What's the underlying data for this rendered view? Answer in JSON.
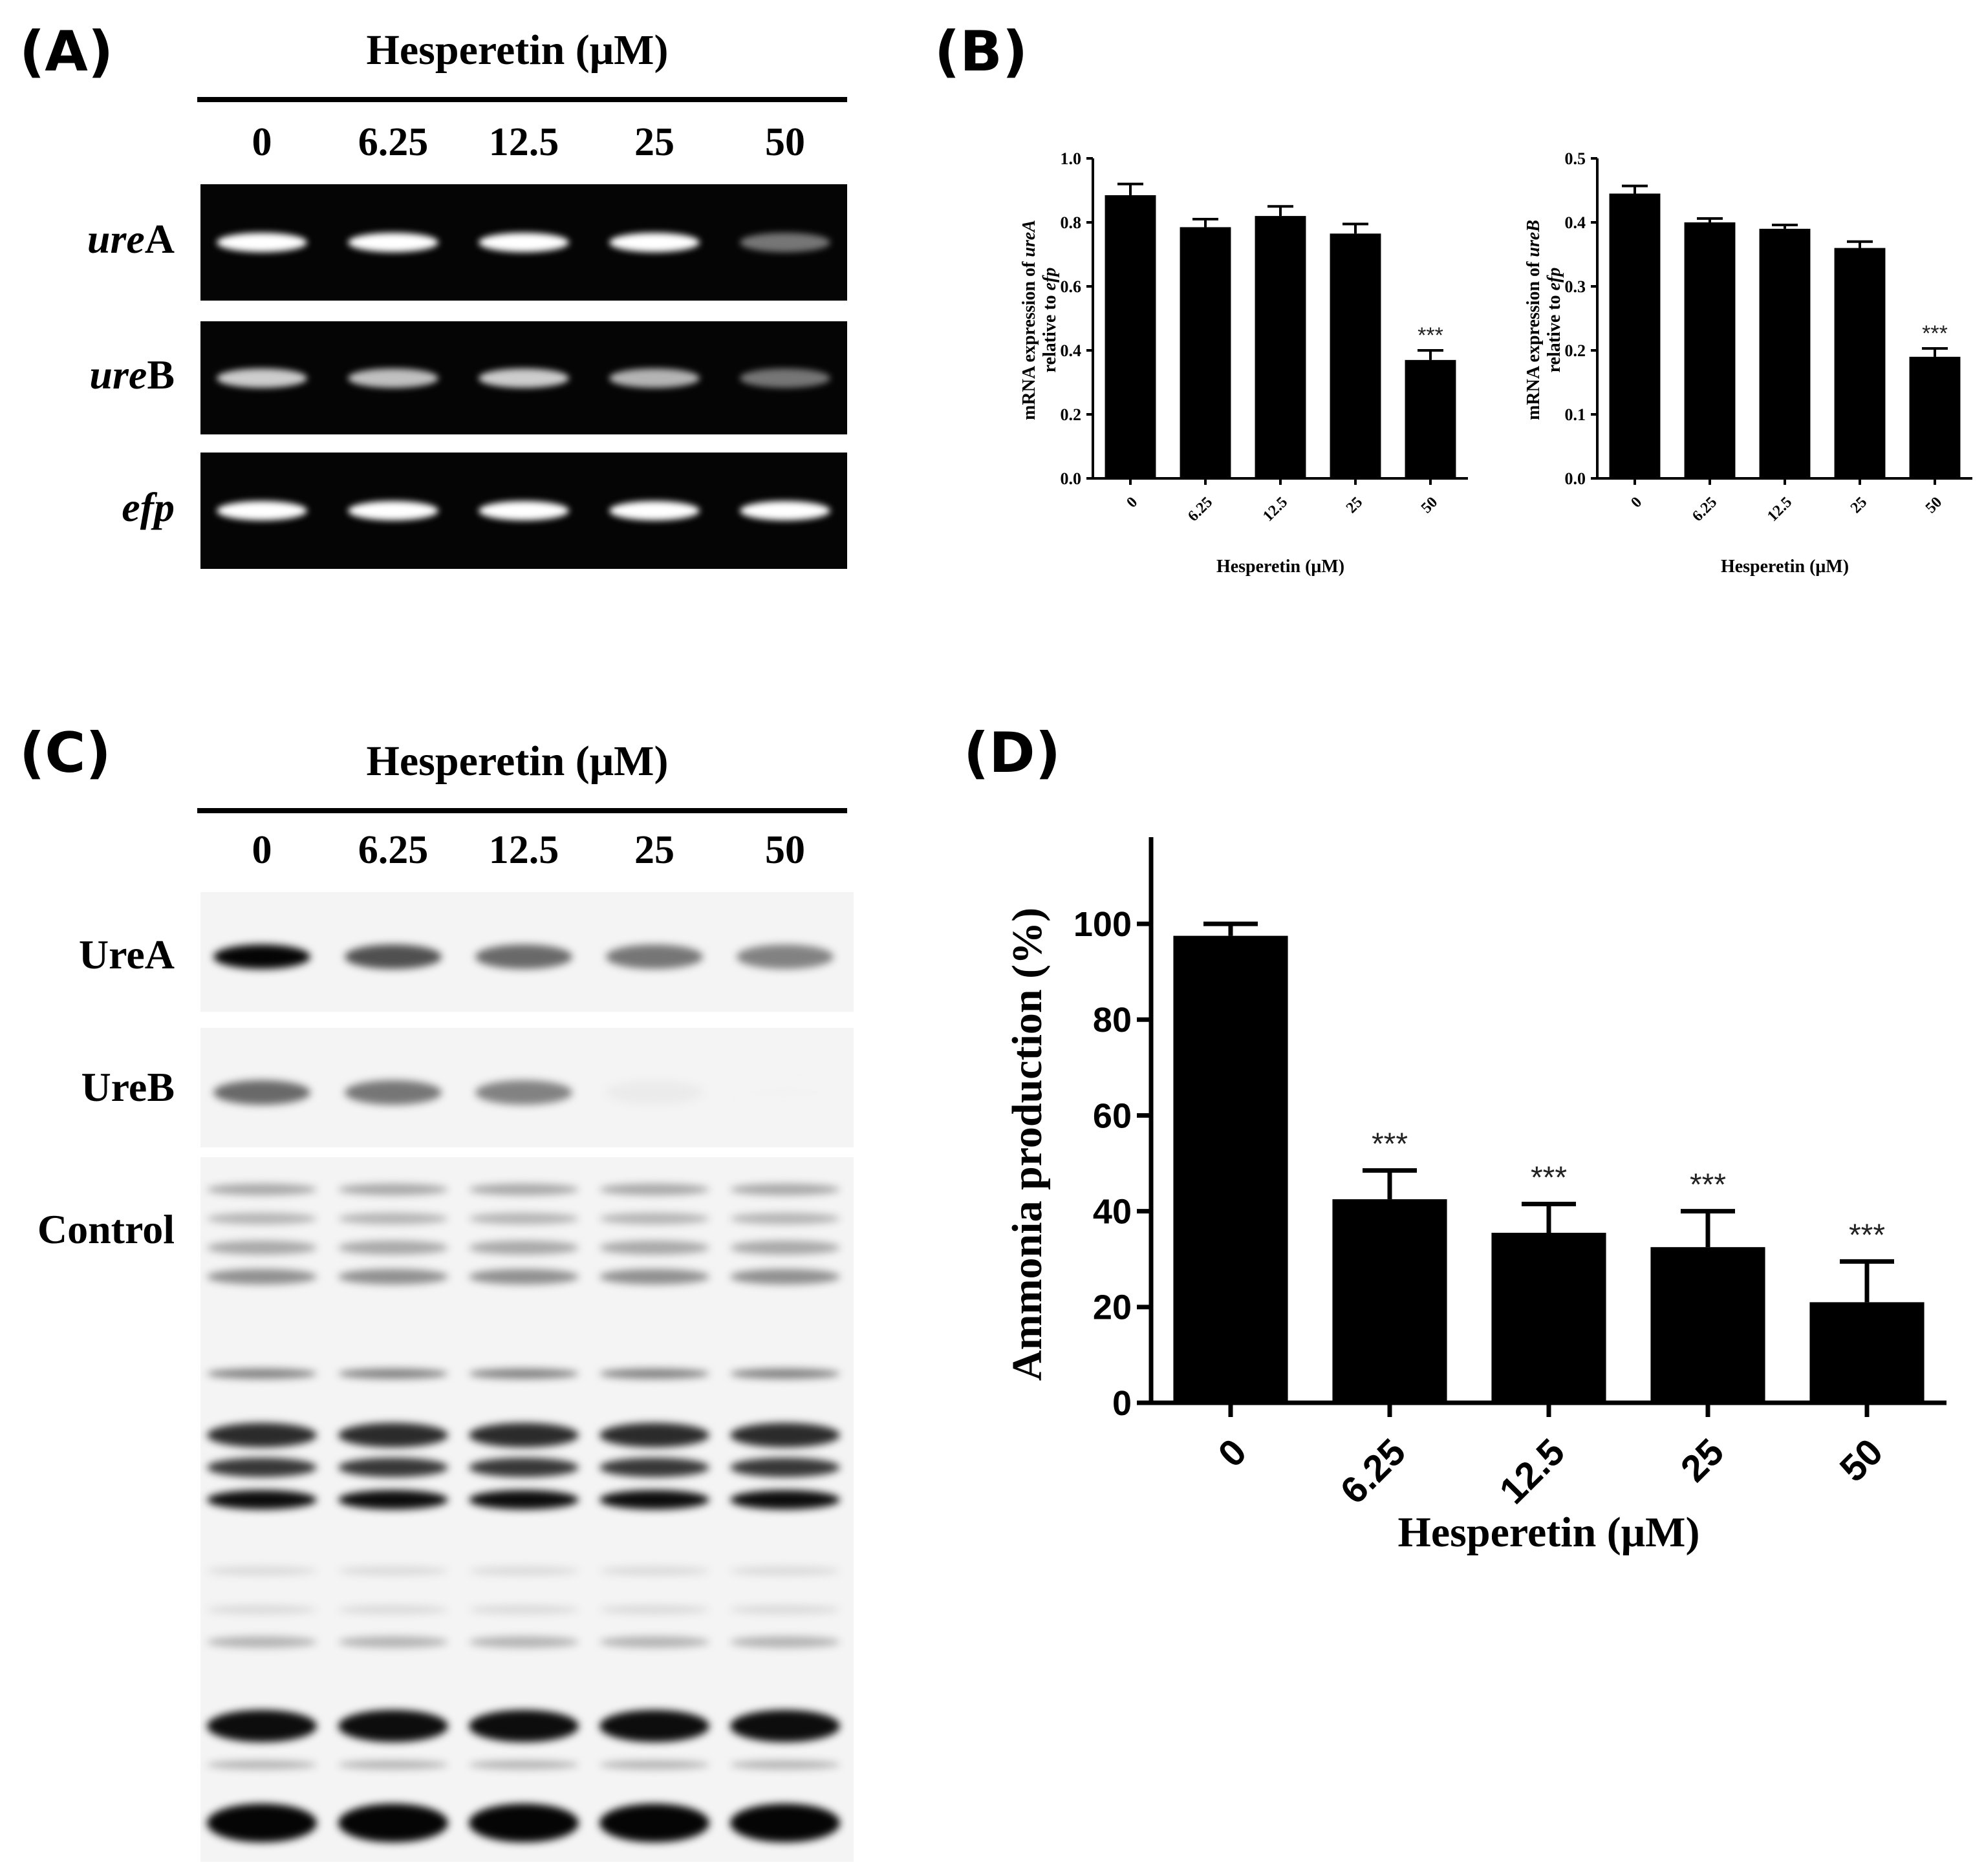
{
  "panels": {
    "a": {
      "letter": "(A)",
      "header": "Hesperetin (μM)",
      "lanes": [
        "0",
        "6.25",
        "12.5",
        "25",
        "50"
      ],
      "rows": [
        {
          "italic": "ure",
          "plain": "A",
          "intensity": [
            1,
            1,
            1,
            1,
            0.45
          ]
        },
        {
          "italic": "ure",
          "plain": "B",
          "intensity": [
            0.8,
            0.75,
            0.8,
            0.7,
            0.45
          ]
        },
        {
          "italic": "efp",
          "plain": "",
          "intensity": [
            1,
            1,
            1,
            1,
            1
          ]
        }
      ]
    },
    "b": {
      "letter": "(B)"
    },
    "c": {
      "letter": "(C)",
      "header": "Hesperetin (μM)",
      "lanes": [
        "0",
        "6.25",
        "12.5",
        "25",
        "50"
      ],
      "rows": [
        {
          "label": "UreA",
          "intensity": [
            1,
            0.7,
            0.6,
            0.55,
            0.5
          ]
        },
        {
          "label": "UreB",
          "intensity": [
            0.6,
            0.55,
            0.5,
            0.08,
            0.05
          ]
        },
        {
          "label": "Control",
          "intensity": [
            1,
            1,
            1,
            1,
            1
          ]
        }
      ]
    },
    "d": {
      "letter": "(D)"
    }
  },
  "chart_data": [
    {
      "type": "bar",
      "panel": "B-left",
      "categories": [
        "0",
        "6.25",
        "12.5",
        "25",
        "50"
      ],
      "values": [
        0.885,
        0.785,
        0.82,
        0.765,
        0.37
      ],
      "errors": [
        0.035,
        0.025,
        0.03,
        0.03,
        0.03
      ],
      "significance": [
        "",
        "",
        "",
        "",
        "***"
      ],
      "xlabel": "Hesperetin (μM)",
      "ylabel_line1_plain": "mRNA expression of ",
      "ylabel_line1_italic": "ureA",
      "ylabel_line2_plain": "relative to ",
      "ylabel_line2_italic": "efp",
      "ylim": [
        0,
        1.0
      ],
      "yticks": [
        "0.0",
        "0.2",
        "0.4",
        "0.6",
        "0.8",
        "1.0"
      ],
      "bar_color": "#000000"
    },
    {
      "type": "bar",
      "panel": "B-right",
      "categories": [
        "0",
        "6.25",
        "12.5",
        "25",
        "50"
      ],
      "values": [
        0.445,
        0.4,
        0.39,
        0.36,
        0.19
      ],
      "errors": [
        0.012,
        0.006,
        0.006,
        0.01,
        0.013
      ],
      "significance": [
        "",
        "",
        "",
        "",
        "***"
      ],
      "xlabel": "Hesperetin (μM)",
      "ylabel_line1_plain": "mRNA expression of ",
      "ylabel_line1_italic": "ureB",
      "ylabel_line2_plain": "relative to ",
      "ylabel_line2_italic": "efp",
      "ylim": [
        0,
        0.5
      ],
      "yticks": [
        "0.0",
        "0.1",
        "0.2",
        "0.3",
        "0.4",
        "0.5"
      ],
      "bar_color": "#000000"
    },
    {
      "type": "bar",
      "panel": "D",
      "categories": [
        "0",
        "6.25",
        "12.5",
        "25",
        "50"
      ],
      "values": [
        97.5,
        42.5,
        35.5,
        32.5,
        21
      ],
      "errors": [
        2.5,
        6,
        6,
        7.5,
        8.5
      ],
      "significance": [
        "",
        "***",
        "***",
        "***",
        "***"
      ],
      "xlabel": "Hesperetin (μM)",
      "ylabel": "Ammonia production (%)",
      "ylim": [
        0,
        110
      ],
      "yticks": [
        "0",
        "20",
        "40",
        "60",
        "80",
        "100"
      ],
      "bar_color": "#000000"
    }
  ]
}
